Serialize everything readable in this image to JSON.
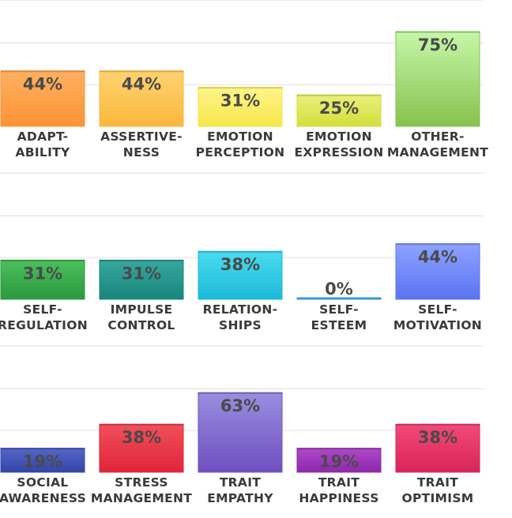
{
  "chart_data": [
    {
      "type": "bar",
      "ylim": [
        0,
        100
      ],
      "grid": true,
      "categories": [
        [
          "ADAPT-",
          "ABILITY"
        ],
        [
          "ASSERTIVE-",
          "NESS"
        ],
        [
          "EMOTION",
          "PERCEPTION"
        ],
        [
          "EMOTION",
          "EXPRESSION"
        ],
        [
          "OTHER-",
          "MANAGEMENT"
        ]
      ],
      "values": [
        44,
        44,
        31,
        25,
        75
      ],
      "value_labels": [
        "44%",
        "44%",
        "31%",
        "25%",
        "75%"
      ],
      "colors": [
        [
          "#ffb060",
          "#fb9436"
        ],
        [
          "#ffd372",
          "#fbb73c"
        ],
        [
          "#fff58a",
          "#f7e64a"
        ],
        [
          "#eaf07a",
          "#d2df3c"
        ],
        [
          "#c6f7aa",
          "#86c24e"
        ]
      ]
    },
    {
      "type": "bar",
      "ylim": [
        0,
        100
      ],
      "grid": true,
      "categories": [
        [
          "SELF-",
          "REGULATION"
        ],
        [
          "IMPULSE",
          "CONTROL"
        ],
        [
          "RELATION-",
          "SHIPS"
        ],
        [
          "SELF-",
          "ESTEEM"
        ],
        [
          "SELF-",
          "MOTIVATION"
        ]
      ],
      "values": [
        31,
        31,
        38,
        0,
        44
      ],
      "value_labels": [
        "31%",
        "31%",
        "38%",
        "0%",
        "44%"
      ],
      "colors": [
        [
          "#4cbf5c",
          "#2a9a3e"
        ],
        [
          "#36a89e",
          "#19857c"
        ],
        [
          "#4adcf0",
          "#1cb9d8"
        ],
        [
          "#5ab8e8",
          "#2d93d1"
        ],
        [
          "#8ea2ff",
          "#5a74f2"
        ]
      ]
    },
    {
      "type": "bar",
      "ylim": [
        0,
        100
      ],
      "grid": true,
      "categories": [
        [
          "SOCIAL",
          "AWARENESS"
        ],
        [
          "STRESS",
          "MANAGEMENT"
        ],
        [
          "TRAIT",
          "EMPATHY"
        ],
        [
          "TRAIT",
          "HAPPINESS"
        ],
        [
          "TRAIT",
          "OPTIMISM"
        ]
      ],
      "values": [
        19,
        38,
        63,
        19,
        38
      ],
      "value_labels": [
        "19%",
        "38%",
        "63%",
        "19%",
        "38%"
      ],
      "colors": [
        [
          "#5466c8",
          "#3346a8"
        ],
        [
          "#f2505a",
          "#e0243a"
        ],
        [
          "#9a8ee0",
          "#6e4fc0"
        ],
        [
          "#b04ac8",
          "#8d27ad"
        ],
        [
          "#f24a78",
          "#d9255a"
        ]
      ]
    }
  ]
}
